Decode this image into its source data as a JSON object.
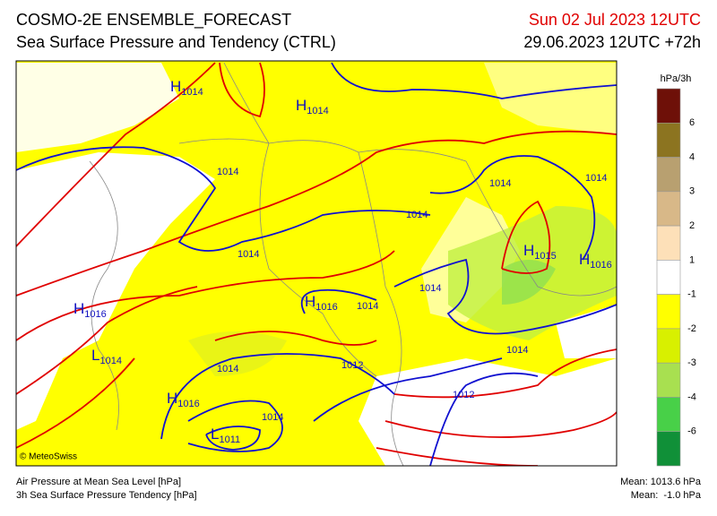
{
  "header": {
    "title": "COSMO-2E ENSEMBLE_FORECAST",
    "subtitle": "Sea Surface Pressure and Tendency (CTRL)",
    "valid_time": "Sun 02 Jul 2023 12UTC",
    "run_time": "29.06.2023 12UTC +72h"
  },
  "legend": {
    "unit": "hPa/3h",
    "colors": [
      "#6e1008",
      "#8c7420",
      "#b8a070",
      "#d8b888",
      "#fde0b8",
      "#ffffff",
      "#ffff00",
      "#d8f000",
      "#a8e050",
      "#48d048",
      "#109038"
    ],
    "labels": [
      "6",
      "4",
      "3",
      "2",
      "1",
      "-1",
      "-2",
      "-3",
      "-4",
      "-6"
    ]
  },
  "map": {
    "centers": [
      {
        "letter": "H",
        "value": "1014"
      },
      {
        "letter": "H",
        "value": "1014"
      },
      {
        "letter": "H",
        "value": "1015"
      },
      {
        "letter": "H",
        "value": "1016"
      },
      {
        "letter": "H",
        "value": "1016"
      },
      {
        "letter": "H",
        "value": "1016"
      },
      {
        "letter": "L",
        "value": "1014"
      },
      {
        "letter": "H",
        "value": "1016"
      },
      {
        "letter": "L",
        "value": "1011"
      }
    ],
    "isobar_labels": [
      "1014",
      "1014",
      "1014",
      "1014",
      "1014",
      "1014",
      "1014",
      "1014",
      "1012",
      "1012",
      "1014",
      "1014"
    ],
    "copyright": "© MeteoSwiss"
  },
  "footer": {
    "left": [
      "Air Pressure at Mean Sea Level [hPa]",
      "3h Sea Surface Pressure Tendency [hPa]"
    ],
    "right": [
      "Mean: 1013.6 hPa",
      "Mean:  -1.0 hPa"
    ]
  }
}
